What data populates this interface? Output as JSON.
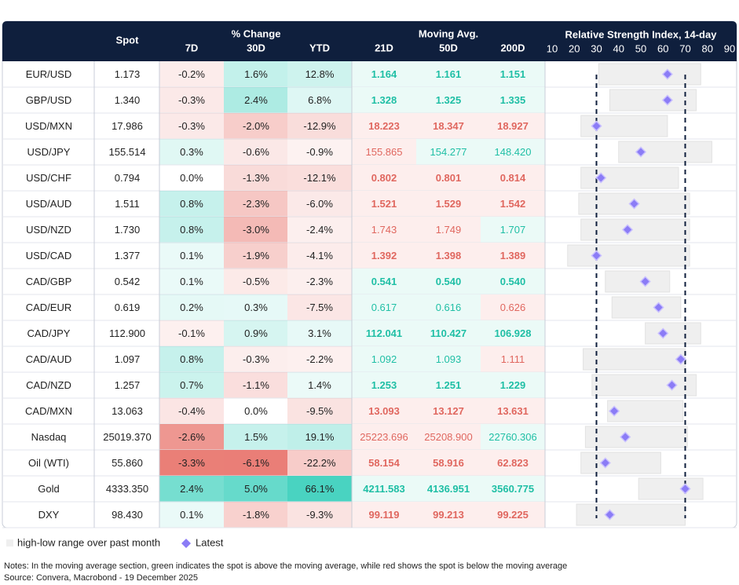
{
  "header": {
    "spot": "Spot",
    "pct_change": "% Change",
    "moving_avg": "Moving Avg.",
    "rsi_title": "Relative Strength Index, 14-day",
    "columns": [
      "7D",
      "30D",
      "YTD",
      "21D",
      "50D",
      "200D"
    ]
  },
  "rsi_axis": {
    "xlim": [
      10,
      90
    ],
    "xticks": [
      10,
      20,
      30,
      40,
      50,
      60,
      70,
      80,
      90
    ],
    "reference_lines": [
      30,
      70
    ]
  },
  "rows": [
    {
      "name": "EUR/USD",
      "spot": "1.173",
      "changes": [
        "-0.2%",
        "1.6%",
        "12.8%"
      ],
      "moving_avgs": [
        "1.164",
        "1.161",
        "1.151"
      ],
      "rsi_range": [
        31,
        77
      ],
      "rsi_latest": 62
    },
    {
      "name": "GBP/USD",
      "spot": "1.340",
      "changes": [
        "-0.3%",
        "2.4%",
        "6.8%"
      ],
      "moving_avgs": [
        "1.328",
        "1.325",
        "1.335"
      ],
      "rsi_range": [
        36,
        75
      ],
      "rsi_latest": 62
    },
    {
      "name": "USD/MXN",
      "spot": "17.986",
      "changes": [
        "-0.3%",
        "-2.0%",
        "-12.9%"
      ],
      "moving_avgs": [
        "18.223",
        "18.347",
        "18.927"
      ],
      "rsi_range": [
        23,
        62
      ],
      "rsi_latest": 30
    },
    {
      "name": "USD/JPY",
      "spot": "155.514",
      "changes": [
        "0.3%",
        "-0.6%",
        "-0.9%"
      ],
      "moving_avgs": [
        "155.865",
        "154.277",
        "148.420"
      ],
      "rsi_range": [
        40,
        82
      ],
      "rsi_latest": 50
    },
    {
      "name": "USD/CHF",
      "spot": "0.794",
      "changes": [
        "0.0%",
        "-1.3%",
        "-12.1%"
      ],
      "moving_avgs": [
        "0.802",
        "0.801",
        "0.814"
      ],
      "rsi_range": [
        23,
        67
      ],
      "rsi_latest": 32
    },
    {
      "name": "USD/AUD",
      "spot": "1.511",
      "changes": [
        "0.8%",
        "-2.3%",
        "-6.0%"
      ],
      "moving_avgs": [
        "1.521",
        "1.529",
        "1.542"
      ],
      "rsi_range": [
        22,
        72
      ],
      "rsi_latest": 47
    },
    {
      "name": "USD/NZD",
      "spot": "1.730",
      "changes": [
        "0.8%",
        "-3.0%",
        "-2.4%"
      ],
      "moving_avgs": [
        "1.743",
        "1.749",
        "1.707"
      ],
      "rsi_range": [
        23,
        72
      ],
      "rsi_latest": 44
    },
    {
      "name": "USD/CAD",
      "spot": "1.377",
      "changes": [
        "0.1%",
        "-1.9%",
        "-4.1%"
      ],
      "moving_avgs": [
        "1.392",
        "1.398",
        "1.389"
      ],
      "rsi_range": [
        17,
        72
      ],
      "rsi_latest": 30
    },
    {
      "name": "CAD/GBP",
      "spot": "0.542",
      "changes": [
        "0.1%",
        "-0.5%",
        "-2.3%"
      ],
      "moving_avgs": [
        "0.541",
        "0.540",
        "0.540"
      ],
      "rsi_range": [
        34,
        63
      ],
      "rsi_latest": 52
    },
    {
      "name": "CAD/EUR",
      "spot": "0.619",
      "changes": [
        "0.2%",
        "0.3%",
        "-7.5%"
      ],
      "moving_avgs": [
        "0.617",
        "0.616",
        "0.626"
      ],
      "rsi_range": [
        37,
        68
      ],
      "rsi_latest": 58
    },
    {
      "name": "CAD/JPY",
      "spot": "112.900",
      "changes": [
        "-0.1%",
        "0.9%",
        "3.1%"
      ],
      "moving_avgs": [
        "112.041",
        "110.427",
        "106.928"
      ],
      "rsi_range": [
        52,
        77
      ],
      "rsi_latest": 60
    },
    {
      "name": "CAD/AUD",
      "spot": "1.097",
      "changes": [
        "0.8%",
        "-0.3%",
        "-2.2%"
      ],
      "moving_avgs": [
        "1.092",
        "1.093",
        "1.111"
      ],
      "rsi_range": [
        24,
        70
      ],
      "rsi_latest": 68
    },
    {
      "name": "CAD/NZD",
      "spot": "1.257",
      "changes": [
        "0.7%",
        "-1.1%",
        "1.4%"
      ],
      "moving_avgs": [
        "1.253",
        "1.251",
        "1.229"
      ],
      "rsi_range": [
        28,
        75
      ],
      "rsi_latest": 64
    },
    {
      "name": "CAD/MXN",
      "spot": "13.063",
      "changes": [
        "-0.4%",
        "0.0%",
        "-9.5%"
      ],
      "moving_avgs": [
        "13.093",
        "13.127",
        "13.631"
      ],
      "rsi_range": [
        35,
        69
      ],
      "rsi_latest": 38
    },
    {
      "name": "Nasdaq",
      "spot": "25019.370",
      "changes": [
        "-2.6%",
        "1.5%",
        "19.1%"
      ],
      "moving_avgs": [
        "25223.696",
        "25208.900",
        "22760.306"
      ],
      "rsi_range": [
        25,
        71
      ],
      "rsi_latest": 43
    },
    {
      "name": "Oil (WTI)",
      "spot": "55.860",
      "changes": [
        "-3.3%",
        "-6.1%",
        "-22.2%"
      ],
      "moving_avgs": [
        "58.154",
        "58.916",
        "62.823"
      ],
      "rsi_range": [
        23,
        59
      ],
      "rsi_latest": 34
    },
    {
      "name": "Gold",
      "spot": "4333.350",
      "changes": [
        "2.4%",
        "5.0%",
        "66.1%"
      ],
      "moving_avgs": [
        "4211.583",
        "4136.951",
        "3560.775"
      ],
      "rsi_range": [
        49,
        78
      ],
      "rsi_latest": 70
    },
    {
      "name": "DXY",
      "spot": "98.430",
      "changes": [
        "0.1%",
        "-1.8%",
        "-9.3%"
      ],
      "moving_avgs": [
        "99.119",
        "99.213",
        "99.225"
      ],
      "rsi_range": [
        21,
        70
      ],
      "rsi_latest": 36
    }
  ],
  "legend": {
    "range": "high-low range over past month",
    "latest": "Latest"
  },
  "notes": "Notes: In the moving average section, green indicates the spot is above the moving average, while red shows the spot is below the moving average",
  "source": "Source: Convera, Macrobond - 19 December 2025"
}
